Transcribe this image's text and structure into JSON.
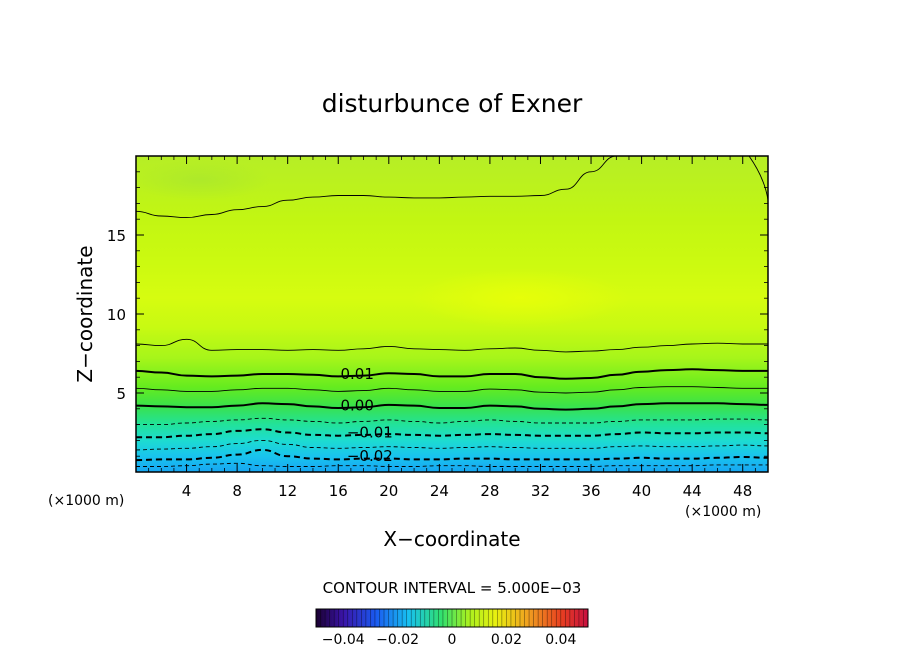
{
  "chart_data": {
    "type": "heatmap",
    "title": "disturbunce of Exner",
    "xlabel": "X−coordinate",
    "ylabel": "Z−coordinate",
    "x_unit": "(×1000 m)",
    "z_unit": "(×1000 m)",
    "xlim": [
      0,
      50
    ],
    "ylim": [
      0,
      20
    ],
    "x_ticks": [
      "4",
      "8",
      "12",
      "16",
      "20",
      "24",
      "28",
      "32",
      "36",
      "40",
      "44",
      "48"
    ],
    "x_tick_values": [
      4,
      8,
      12,
      16,
      20,
      24,
      28,
      32,
      36,
      40,
      44,
      48
    ],
    "y_ticks": [
      "5",
      "10",
      "15"
    ],
    "y_tick_values": [
      5,
      10,
      15
    ],
    "contour_interval_text": "CONTOUR INTERVAL = 5.000E−03",
    "contour_labels": [
      {
        "text": "0.01",
        "x": 17.5,
        "z": 6.2
      },
      {
        "text": "0.00",
        "x": 17.5,
        "z": 4.2
      },
      {
        "text": "−0.01",
        "x": 18.5,
        "z": 2.5
      },
      {
        "text": "−0.02",
        "x": 18.5,
        "z": 1.0
      }
    ],
    "contours": [
      {
        "level": -0.025,
        "style": "dashed",
        "bold": false,
        "z": [
          0.35,
          0.35,
          0.4,
          0.5,
          0.55,
          0.4,
          0.35,
          0.35,
          0.4,
          0.4,
          0.35,
          0.35,
          0.4,
          0.4,
          0.35,
          0.35,
          0.35,
          0.35,
          0.35,
          0.4,
          0.4,
          0.4,
          0.4,
          0.45,
          0.45,
          0.45
        ]
      },
      {
        "level": -0.02,
        "style": "dashed",
        "bold": true,
        "z": [
          0.75,
          0.8,
          0.8,
          0.9,
          1.1,
          1.4,
          1.0,
          0.85,
          0.8,
          0.85,
          0.85,
          0.8,
          0.8,
          0.85,
          0.85,
          0.8,
          0.8,
          0.8,
          0.8,
          0.85,
          0.9,
          0.85,
          0.85,
          0.9,
          0.95,
          0.9
        ]
      },
      {
        "level": -0.015,
        "style": "dashed",
        "bold": false,
        "z": [
          1.4,
          1.45,
          1.5,
          1.6,
          1.8,
          2.0,
          1.75,
          1.55,
          1.5,
          1.55,
          1.6,
          1.55,
          1.5,
          1.55,
          1.6,
          1.55,
          1.5,
          1.5,
          1.5,
          1.6,
          1.65,
          1.6,
          1.6,
          1.65,
          1.7,
          1.65
        ]
      },
      {
        "level": -0.01,
        "style": "dashed",
        "bold": true,
        "z": [
          2.2,
          2.2,
          2.3,
          2.4,
          2.6,
          2.7,
          2.5,
          2.35,
          2.3,
          2.35,
          2.4,
          2.35,
          2.3,
          2.35,
          2.4,
          2.35,
          2.3,
          2.3,
          2.3,
          2.4,
          2.5,
          2.45,
          2.45,
          2.5,
          2.5,
          2.45
        ]
      },
      {
        "level": -0.005,
        "style": "dashed",
        "bold": false,
        "z": [
          3.0,
          3.0,
          3.1,
          3.2,
          3.3,
          3.4,
          3.3,
          3.2,
          3.1,
          3.2,
          3.3,
          3.2,
          3.1,
          3.2,
          3.3,
          3.2,
          3.1,
          3.1,
          3.1,
          3.2,
          3.3,
          3.3,
          3.3,
          3.35,
          3.35,
          3.3
        ]
      },
      {
        "level": 0.0,
        "style": "solid",
        "bold": true,
        "z": [
          4.2,
          4.15,
          4.1,
          4.1,
          4.2,
          4.35,
          4.3,
          4.15,
          4.05,
          4.1,
          4.25,
          4.2,
          4.05,
          4.05,
          4.2,
          4.15,
          4.0,
          3.95,
          4.0,
          4.15,
          4.3,
          4.35,
          4.35,
          4.35,
          4.3,
          4.25
        ]
      },
      {
        "level": 0.005,
        "style": "solid",
        "bold": false,
        "z": [
          5.3,
          5.2,
          5.1,
          5.1,
          5.2,
          5.3,
          5.3,
          5.2,
          5.1,
          5.15,
          5.3,
          5.2,
          5.1,
          5.1,
          5.25,
          5.2,
          5.05,
          5.0,
          5.05,
          5.2,
          5.35,
          5.4,
          5.4,
          5.35,
          5.3,
          5.3
        ]
      },
      {
        "level": 0.01,
        "style": "solid",
        "bold": true,
        "z": [
          6.4,
          6.3,
          6.1,
          6.05,
          6.1,
          6.2,
          6.2,
          6.15,
          6.05,
          6.1,
          6.25,
          6.2,
          6.05,
          6.05,
          6.2,
          6.2,
          6.0,
          5.9,
          5.95,
          6.15,
          6.35,
          6.45,
          6.5,
          6.45,
          6.4,
          6.4
        ]
      },
      {
        "level": 0.015,
        "style": "solid",
        "bold": false,
        "z": [
          8.1,
          8.0,
          8.4,
          7.7,
          7.75,
          7.75,
          7.7,
          7.75,
          7.7,
          7.8,
          7.95,
          7.8,
          7.75,
          7.7,
          7.8,
          7.85,
          7.7,
          7.6,
          7.65,
          7.75,
          7.9,
          8.0,
          8.1,
          8.15,
          8.1,
          8.1
        ]
      },
      {
        "level": 0.02,
        "style": "solid",
        "bold": false,
        "z": [
          16.5,
          16.2,
          16.1,
          16.3,
          16.6,
          16.8,
          17.2,
          17.4,
          17.5,
          17.5,
          17.4,
          17.35,
          17.35,
          17.4,
          17.45,
          17.45,
          17.5,
          17.9,
          19.0,
          20.0,
          20.0,
          20.0,
          20.0,
          20.0,
          20.0,
          20.0
        ]
      }
    ],
    "colorbar": {
      "ticks": [
        "−0.04",
        "−0.02",
        "0",
        "0.02",
        "0.04"
      ],
      "tick_values": [
        -0.04,
        -0.02,
        0,
        0.02,
        0.04
      ],
      "range": [
        -0.05,
        0.05
      ]
    }
  }
}
